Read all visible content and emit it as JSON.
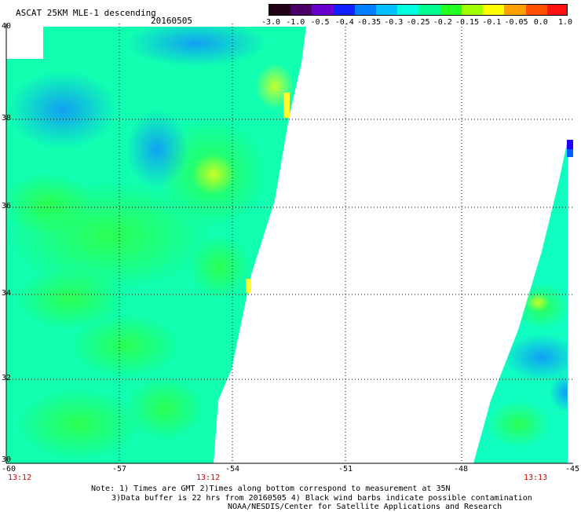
{
  "header": {
    "title": "ASCAT 25KM MLE-1 descending",
    "date": "20160505"
  },
  "colorbar": {
    "labels": [
      "-3.0",
      "-1.0",
      "-0.5",
      "-0.4",
      "-0.35",
      "-0.3",
      "-0.25",
      "-0.2",
      "-0.15",
      "-0.1",
      "-0.05",
      "0.0",
      "1.0"
    ],
    "colors": [
      "#220018",
      "#4a0066",
      "#6a00d0",
      "#1020ff",
      "#0080ff",
      "#00c0ff",
      "#00ffe0",
      "#00ff90",
      "#20ff20",
      "#a0ff00",
      "#ffff00",
      "#ffa000",
      "#ff5000",
      "#ff1010"
    ]
  },
  "map": {
    "lat_labels": [
      "40",
      "38",
      "36",
      "34",
      "32",
      "30"
    ],
    "lon_labels": [
      "-60",
      "-57",
      "-54",
      "-51",
      "-48",
      "-45"
    ],
    "time_labels": [
      "13:12",
      "13:12",
      "13:13"
    ]
  },
  "notes": {
    "line1": "Note: 1) Times are GMT 2)Times along bottom correspond to measurement at 35N",
    "line2": "3)Data buffer is 22 hrs from 20160505 4) Black wind barbs indicate possible contamination",
    "line3": "NOAA/NESDIS/Center for Satellite Applications and Research"
  }
}
